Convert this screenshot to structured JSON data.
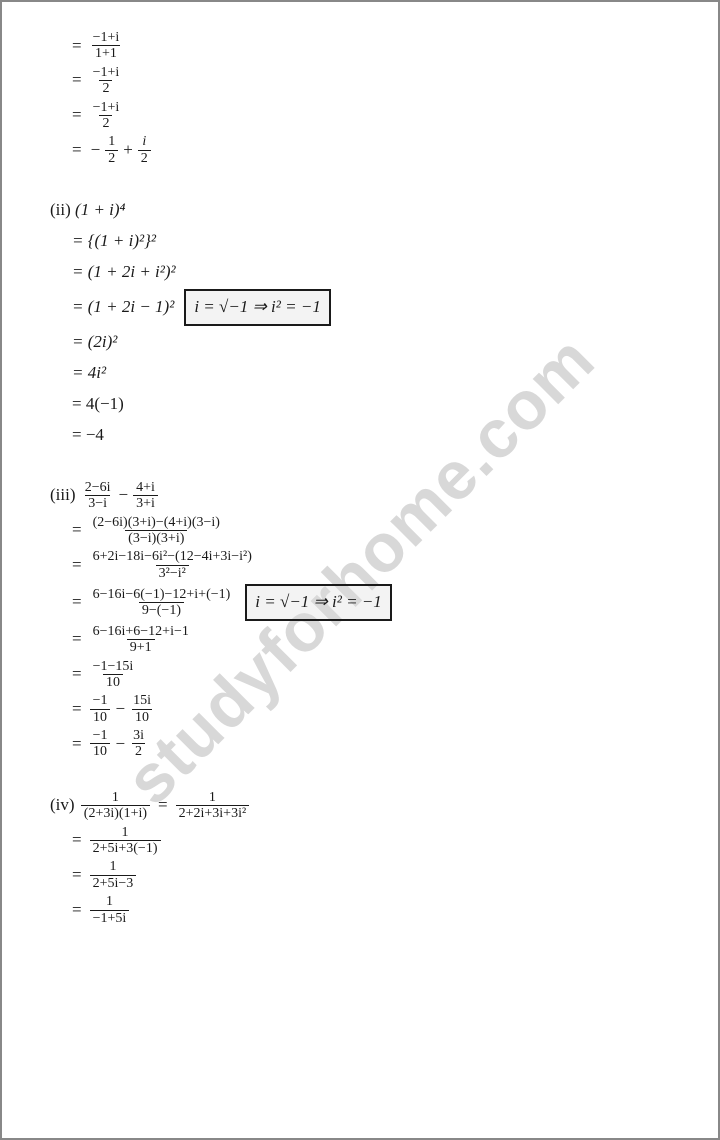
{
  "page": {
    "background_color": "#ffffff",
    "border_color": "#888888",
    "text_color": "#1a1a1a",
    "font_family_body": "Times New Roman",
    "font_size_body": 17,
    "frac_font_size": 14,
    "watermark": {
      "text": "studyforhome.com",
      "color": "#d8d8d8",
      "font_size": 68,
      "rotation_deg": -45
    }
  },
  "sec1": {
    "r1_num": "−1+i",
    "r1_den": "1+1",
    "r2_num": "−1+i",
    "r2_den": "2",
    "r3_num": "−1+i",
    "r3_den": "2",
    "r4_a_num": "1",
    "r4_a_den": "2",
    "r4_b_num": "i",
    "r4_b_den": "2"
  },
  "sec2": {
    "label": "(ii)",
    "title": "(1 + i)⁴",
    "r1": "= {(1 + i)²}²",
    "r2": "= (1 + 2i + i²)²",
    "r3": "= (1 + 2i − 1)²",
    "box": "i = √−1 ⇒ i² = −1",
    "r4": "= (2i)²",
    "r5": "= 4i²",
    "r6": "= 4(−1)",
    "r7": "= −4"
  },
  "sec3": {
    "label": "(iii)",
    "t1_num": "2−6i",
    "t1_den": "3−i",
    "t2_num": "4+i",
    "t2_den": "3+i",
    "r1_num": "(2−6i)(3+i)−(4+i)(3−i)",
    "r1_den": "(3−i)(3+i)",
    "r2_num": "6+2i−18i−6i²−(12−4i+3i−i²)",
    "r2_den": "3²−i²",
    "r3_num": "6−16i−6(−1)−12+i+(−1)",
    "r3_den": "9−(−1)",
    "box": "i = √−1 ⇒ i² = −1",
    "r4_num": "6−16i+6−12+i−1",
    "r4_den": "9+1",
    "r5_num": "−1−15i",
    "r5_den": "10",
    "r6a_num": "−1",
    "r6a_den": "10",
    "r6b_num": "15i",
    "r6b_den": "10",
    "r7a_num": "−1",
    "r7a_den": "10",
    "r7b_num": "3i",
    "r7b_den": "2"
  },
  "sec4": {
    "label": "(iv)",
    "t_num": "1",
    "t_den": "(2+3i)(1+i)",
    "teq_num": "1",
    "teq_den": "2+2i+3i+3i²",
    "r1_num": "1",
    "r1_den": "2+5i+3(−1)",
    "r2_num": "1",
    "r2_den": "2+5i−3",
    "r3_num": "1",
    "r3_den": "−1+5i"
  }
}
